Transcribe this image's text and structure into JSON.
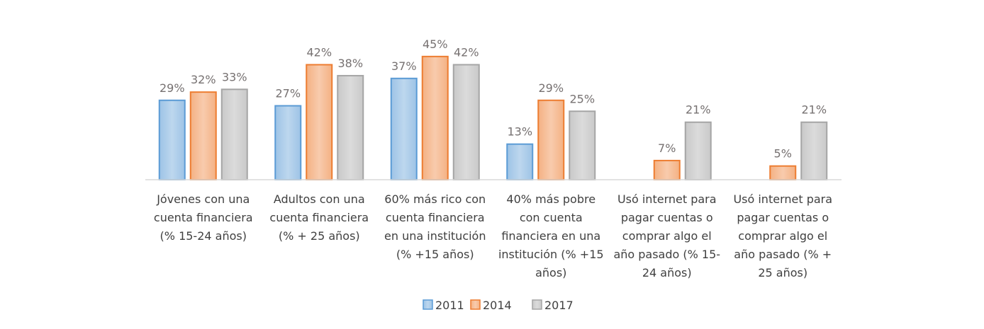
{
  "chart_data": {
    "type": "bar",
    "title": "",
    "xlabel": "",
    "ylabel": "",
    "ylim": [
      0,
      50
    ],
    "grid": false,
    "legend_position": "bottom",
    "value_suffix": "%",
    "categories": [
      [
        "Jóvenes con una",
        "cuenta financiera",
        "(% 15-24 años)"
      ],
      [
        "Adultos con una",
        "cuenta financiera",
        "(% + 25 años)"
      ],
      [
        "60% más rico con",
        "cuenta financiera",
        "en una institución",
        "(% +15 años)"
      ],
      [
        "40% más pobre",
        "con cuenta",
        "financiera en una",
        "institución (% +15",
        "años)"
      ],
      [
        "Usó internet para",
        "pagar cuentas o",
        "comprar algo el",
        "año pasado (% 15-",
        "24 años)"
      ],
      [
        "Usó internet para",
        "pagar cuentas o",
        "comprar algo el",
        "año pasado (% +",
        "25 años)"
      ]
    ],
    "series": [
      {
        "name": "2011",
        "values": [
          29,
          27,
          37,
          13,
          null,
          null
        ],
        "fill": "#bdd7ee",
        "fill_dark": "#9dc3e6",
        "stroke": "#5b9bd5"
      },
      {
        "name": "2014",
        "values": [
          32,
          42,
          45,
          29,
          7,
          5
        ],
        "fill": "#f8cbad",
        "fill_dark": "#f4b183",
        "stroke": "#ed7d31"
      },
      {
        "name": "2017",
        "values": [
          33,
          38,
          42,
          25,
          21,
          21
        ],
        "fill": "#dbdbdb",
        "fill_dark": "#c9c9c9",
        "stroke": "#a5a5a5"
      }
    ]
  },
  "colors": {
    "axis": "#d9d9d9",
    "label_text": "#767171",
    "category_text": "#404040"
  }
}
